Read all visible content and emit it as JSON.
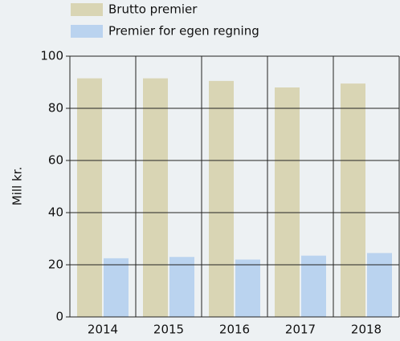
{
  "chart_data": {
    "type": "bar",
    "categories": [
      "2014",
      "2015",
      "2016",
      "2017",
      "2018"
    ],
    "series": [
      {
        "name": "Brutto premier",
        "color": "#d9d5b4",
        "values": [
          91.5,
          91.5,
          90.5,
          88,
          89.5
        ]
      },
      {
        "name": "Premier for egen regning",
        "color": "#bad3ef",
        "values": [
          22.5,
          23,
          22,
          23.5,
          24.5
        ]
      }
    ],
    "ylabel": "Mill kr.",
    "ylim": [
      0,
      100
    ],
    "yticks": [
      0,
      20,
      40,
      60,
      80,
      100
    ],
    "grid": true
  }
}
